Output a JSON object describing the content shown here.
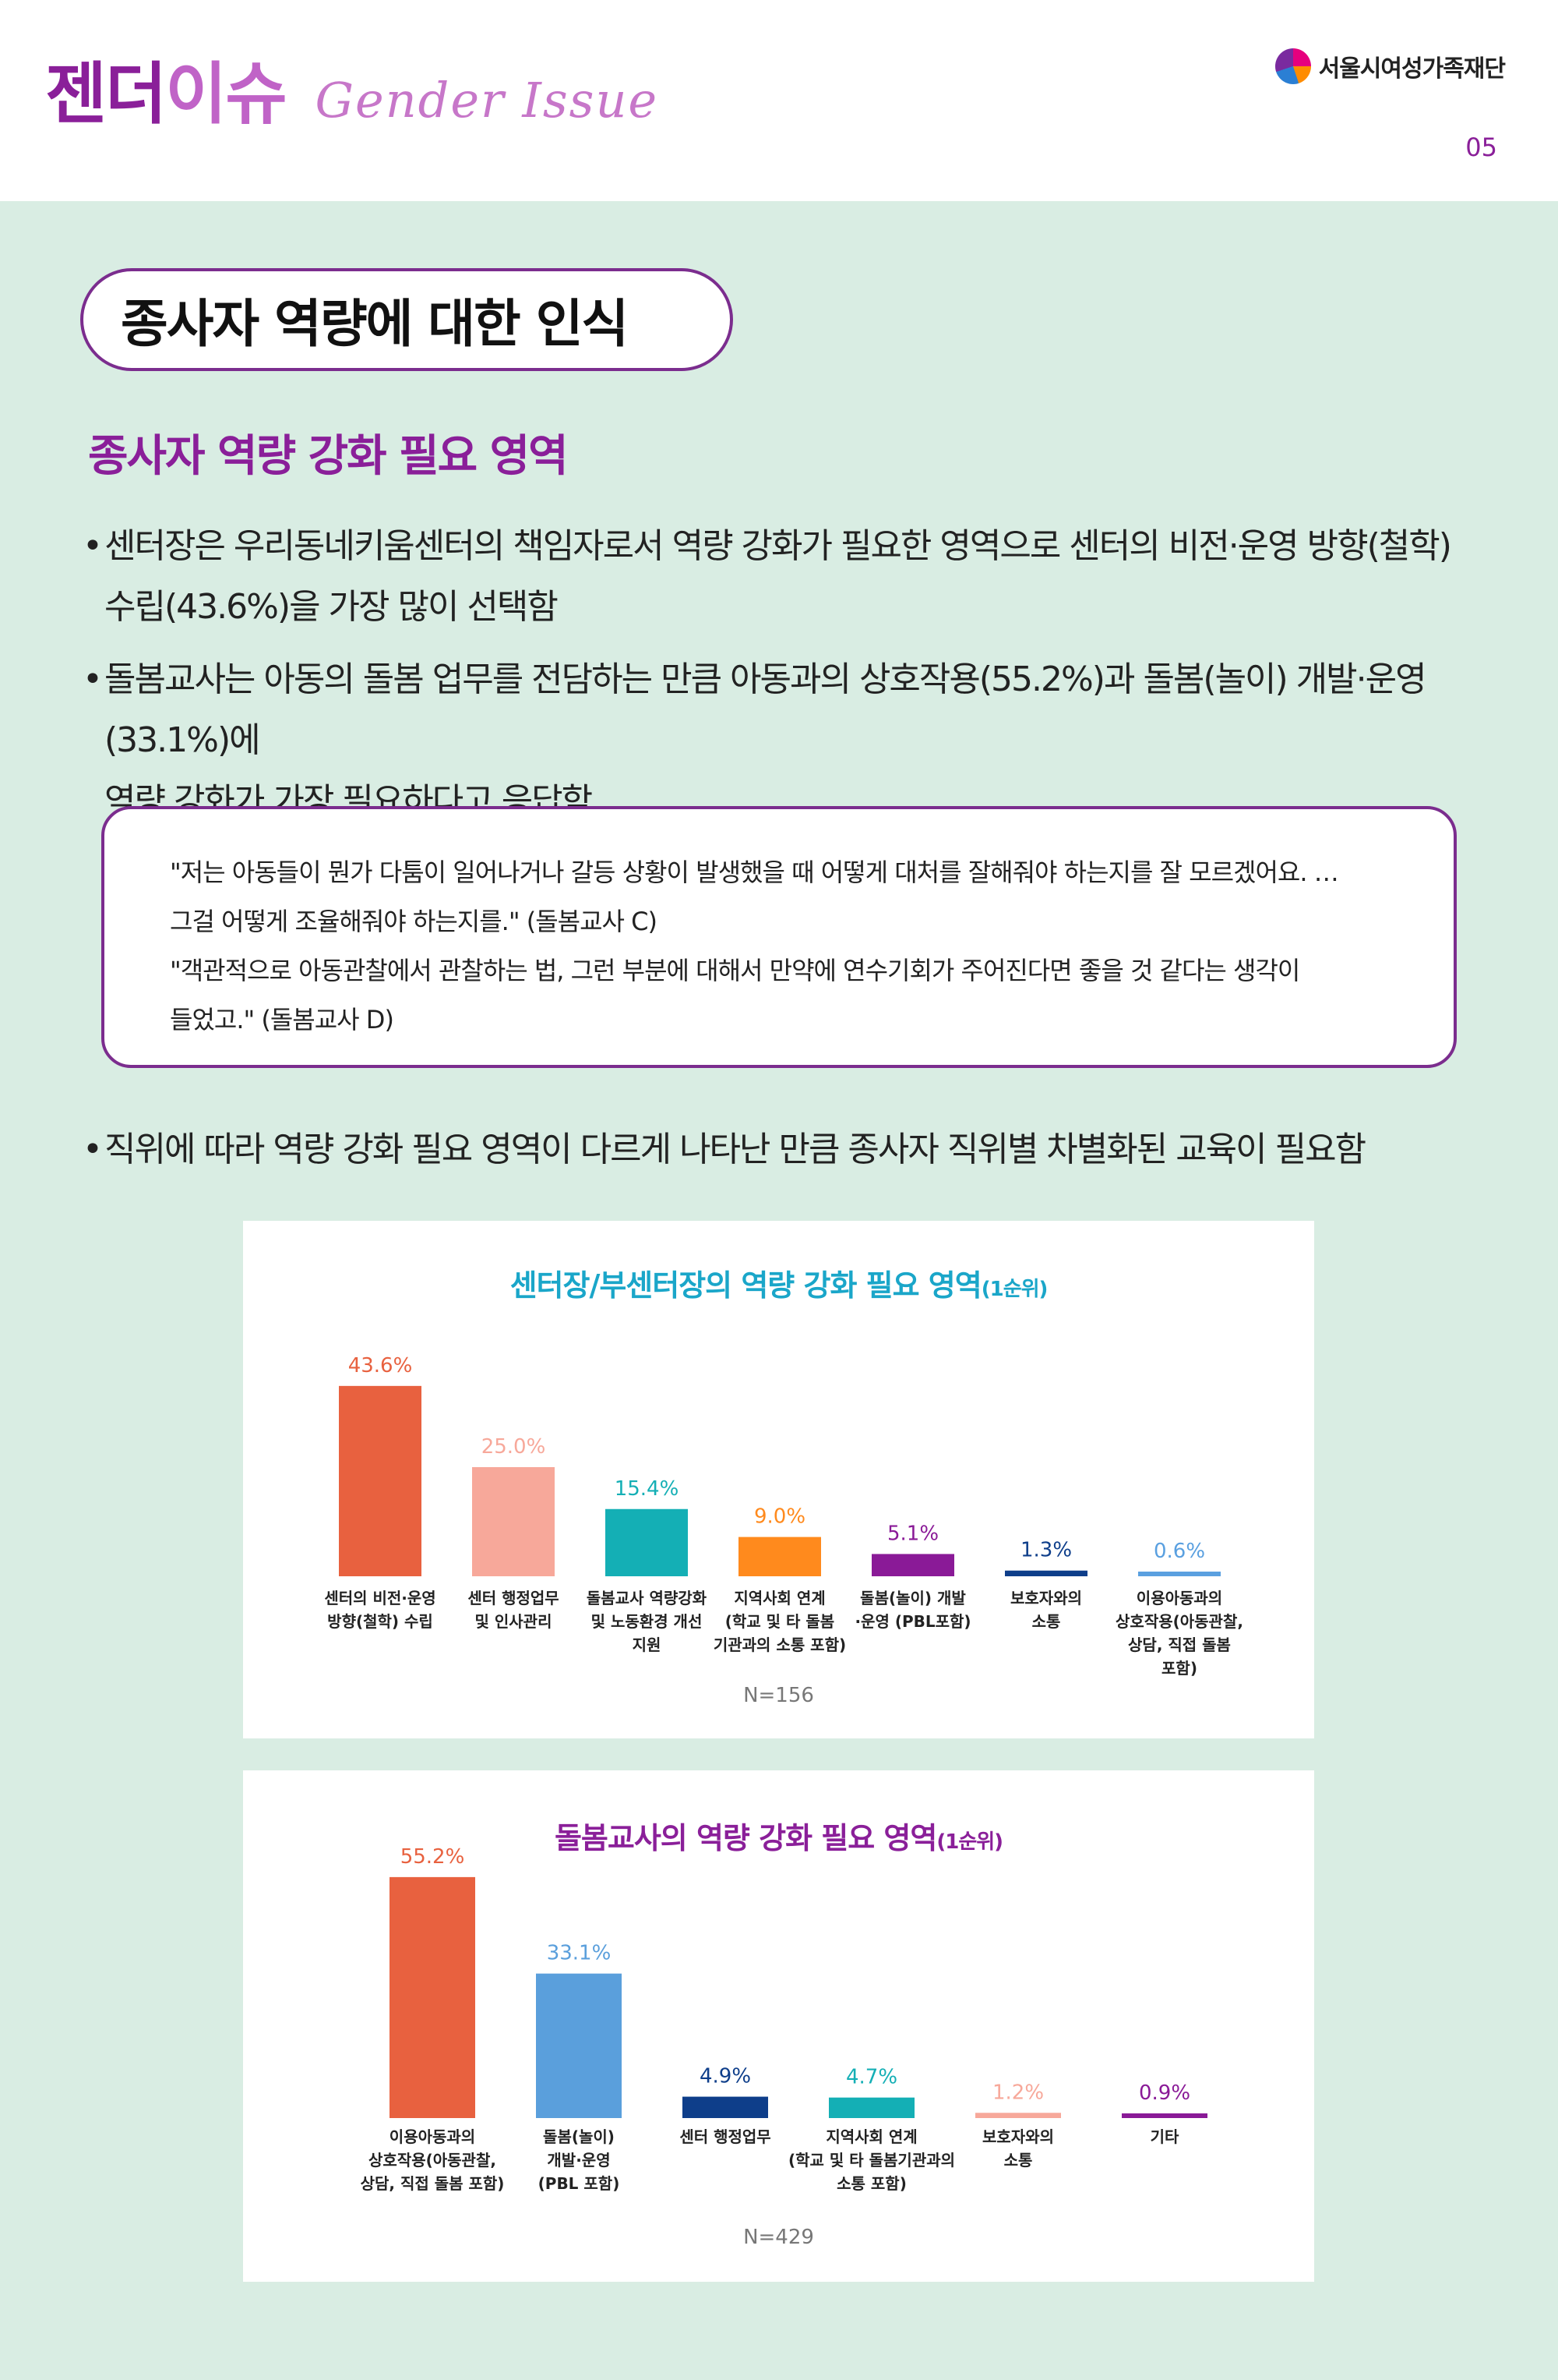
{
  "header": {
    "brand_ko_1": "젠더",
    "brand_ko_2": "이슈",
    "brand_en": "Gender Issue",
    "org_name": "서울시여성가족재단",
    "page_number": "05"
  },
  "section_title": "종사자 역량에 대한 인식",
  "subtitle": "종사자 역량 강화 필요 영역",
  "bullets": [
    {
      "mark": "•",
      "lines": [
        "센터장은 우리동네키움센터의 책임자로서 역량 강화가 필요한 영역으로 센터의 비전·운영 방향(철학)",
        "수립(43.6%)을 가장 많이 선택함"
      ]
    },
    {
      "mark": "•",
      "lines": [
        "돌봄교사는 아동의 돌봄 업무를 전담하는 만큼 아동과의 상호작용(55.2%)과 돌봄(놀이) 개발·운영(33.1%)에",
        "역량 강화가 가장 필요하다고 응답함"
      ]
    },
    {
      "mark": "•",
      "lines": [
        "직위에 따라 역량 강화 필요 영역이 다르게 나타난 만큼 종사자 직위별 차별화된 교육이 필요함"
      ]
    }
  ],
  "quote": {
    "lines": [
      "\"저는 아동들이 뭔가 다툼이 일어나거나 갈등 상황이 발생했을 때 어떻게 대처를 잘해줘야 하는지를 잘 모르겠어요. …",
      "그걸 어떻게 조율해줘야 하는지를.\" (돌봄교사 C)",
      "\"객관적으로 아동관찰에서 관찰하는 법, 그런 부분에 대해서 만약에 연수기회가 주어진다면 좋을 것 같다는 생각이",
      "들었고.\" (돌봄교사 D)"
    ]
  },
  "chart_data": [
    {
      "type": "bar",
      "title": "센터장/부센터장의 역량 강화 필요 영역",
      "title_suffix": "(1순위)",
      "categories": [
        [
          "센터의 비전·운영",
          "방향(철학) 수립"
        ],
        [
          "센터 행정업무",
          "및 인사관리"
        ],
        [
          "돌봄교사 역량강화",
          "및 노동환경 개선",
          "지원"
        ],
        [
          "지역사회 연계",
          "(학교 및 타 돌봄",
          "기관과의 소통 포함)"
        ],
        [
          "돌봄(놀이) 개발",
          "·운영 (PBL포함)"
        ],
        [
          "보호자와의",
          "소통"
        ],
        [
          "이용아동과의",
          "상호작용(아동관찰,",
          "상담, 직접 돌봄",
          "포함)"
        ]
      ],
      "values": [
        43.6,
        25.0,
        15.4,
        9.0,
        5.1,
        1.3,
        0.6
      ],
      "value_labels": [
        "43.6%",
        "25.0%",
        "15.4%",
        "9.0%",
        "5.1%",
        "1.3%",
        "0.6%"
      ],
      "colors": [
        "#e8613f",
        "#f7a89a",
        "#14afb5",
        "#ff8a1d",
        "#8a1a97",
        "#0e3e8a",
        "#5aa0e0"
      ],
      "n_label": "N=156"
    },
    {
      "type": "bar",
      "title": "돌봄교사의 역량 강화 필요 영역",
      "title_suffix": "(1순위)",
      "categories": [
        [
          "이용아동과의",
          "상호작용(아동관찰,",
          "상담, 직접 돌봄 포함)"
        ],
        [
          "돌봄(놀이)",
          "개발·운영",
          "(PBL 포함)"
        ],
        [
          "센터 행정업무"
        ],
        [
          "지역사회 연계",
          "(학교 및 타 돌봄기관과의",
          "소통 포함)"
        ],
        [
          "보호자와의",
          "소통"
        ],
        [
          "기타"
        ]
      ],
      "values": [
        55.2,
        33.1,
        4.9,
        4.7,
        1.2,
        0.9
      ],
      "value_labels": [
        "55.2%",
        "33.1%",
        "4.9%",
        "4.7%",
        "1.2%",
        "0.9%"
      ],
      "colors": [
        "#e8613f",
        "#5a9fdc",
        "#0e3e8a",
        "#14afb5",
        "#f7a89a",
        "#8a1a97"
      ],
      "n_label": "N=429"
    }
  ]
}
